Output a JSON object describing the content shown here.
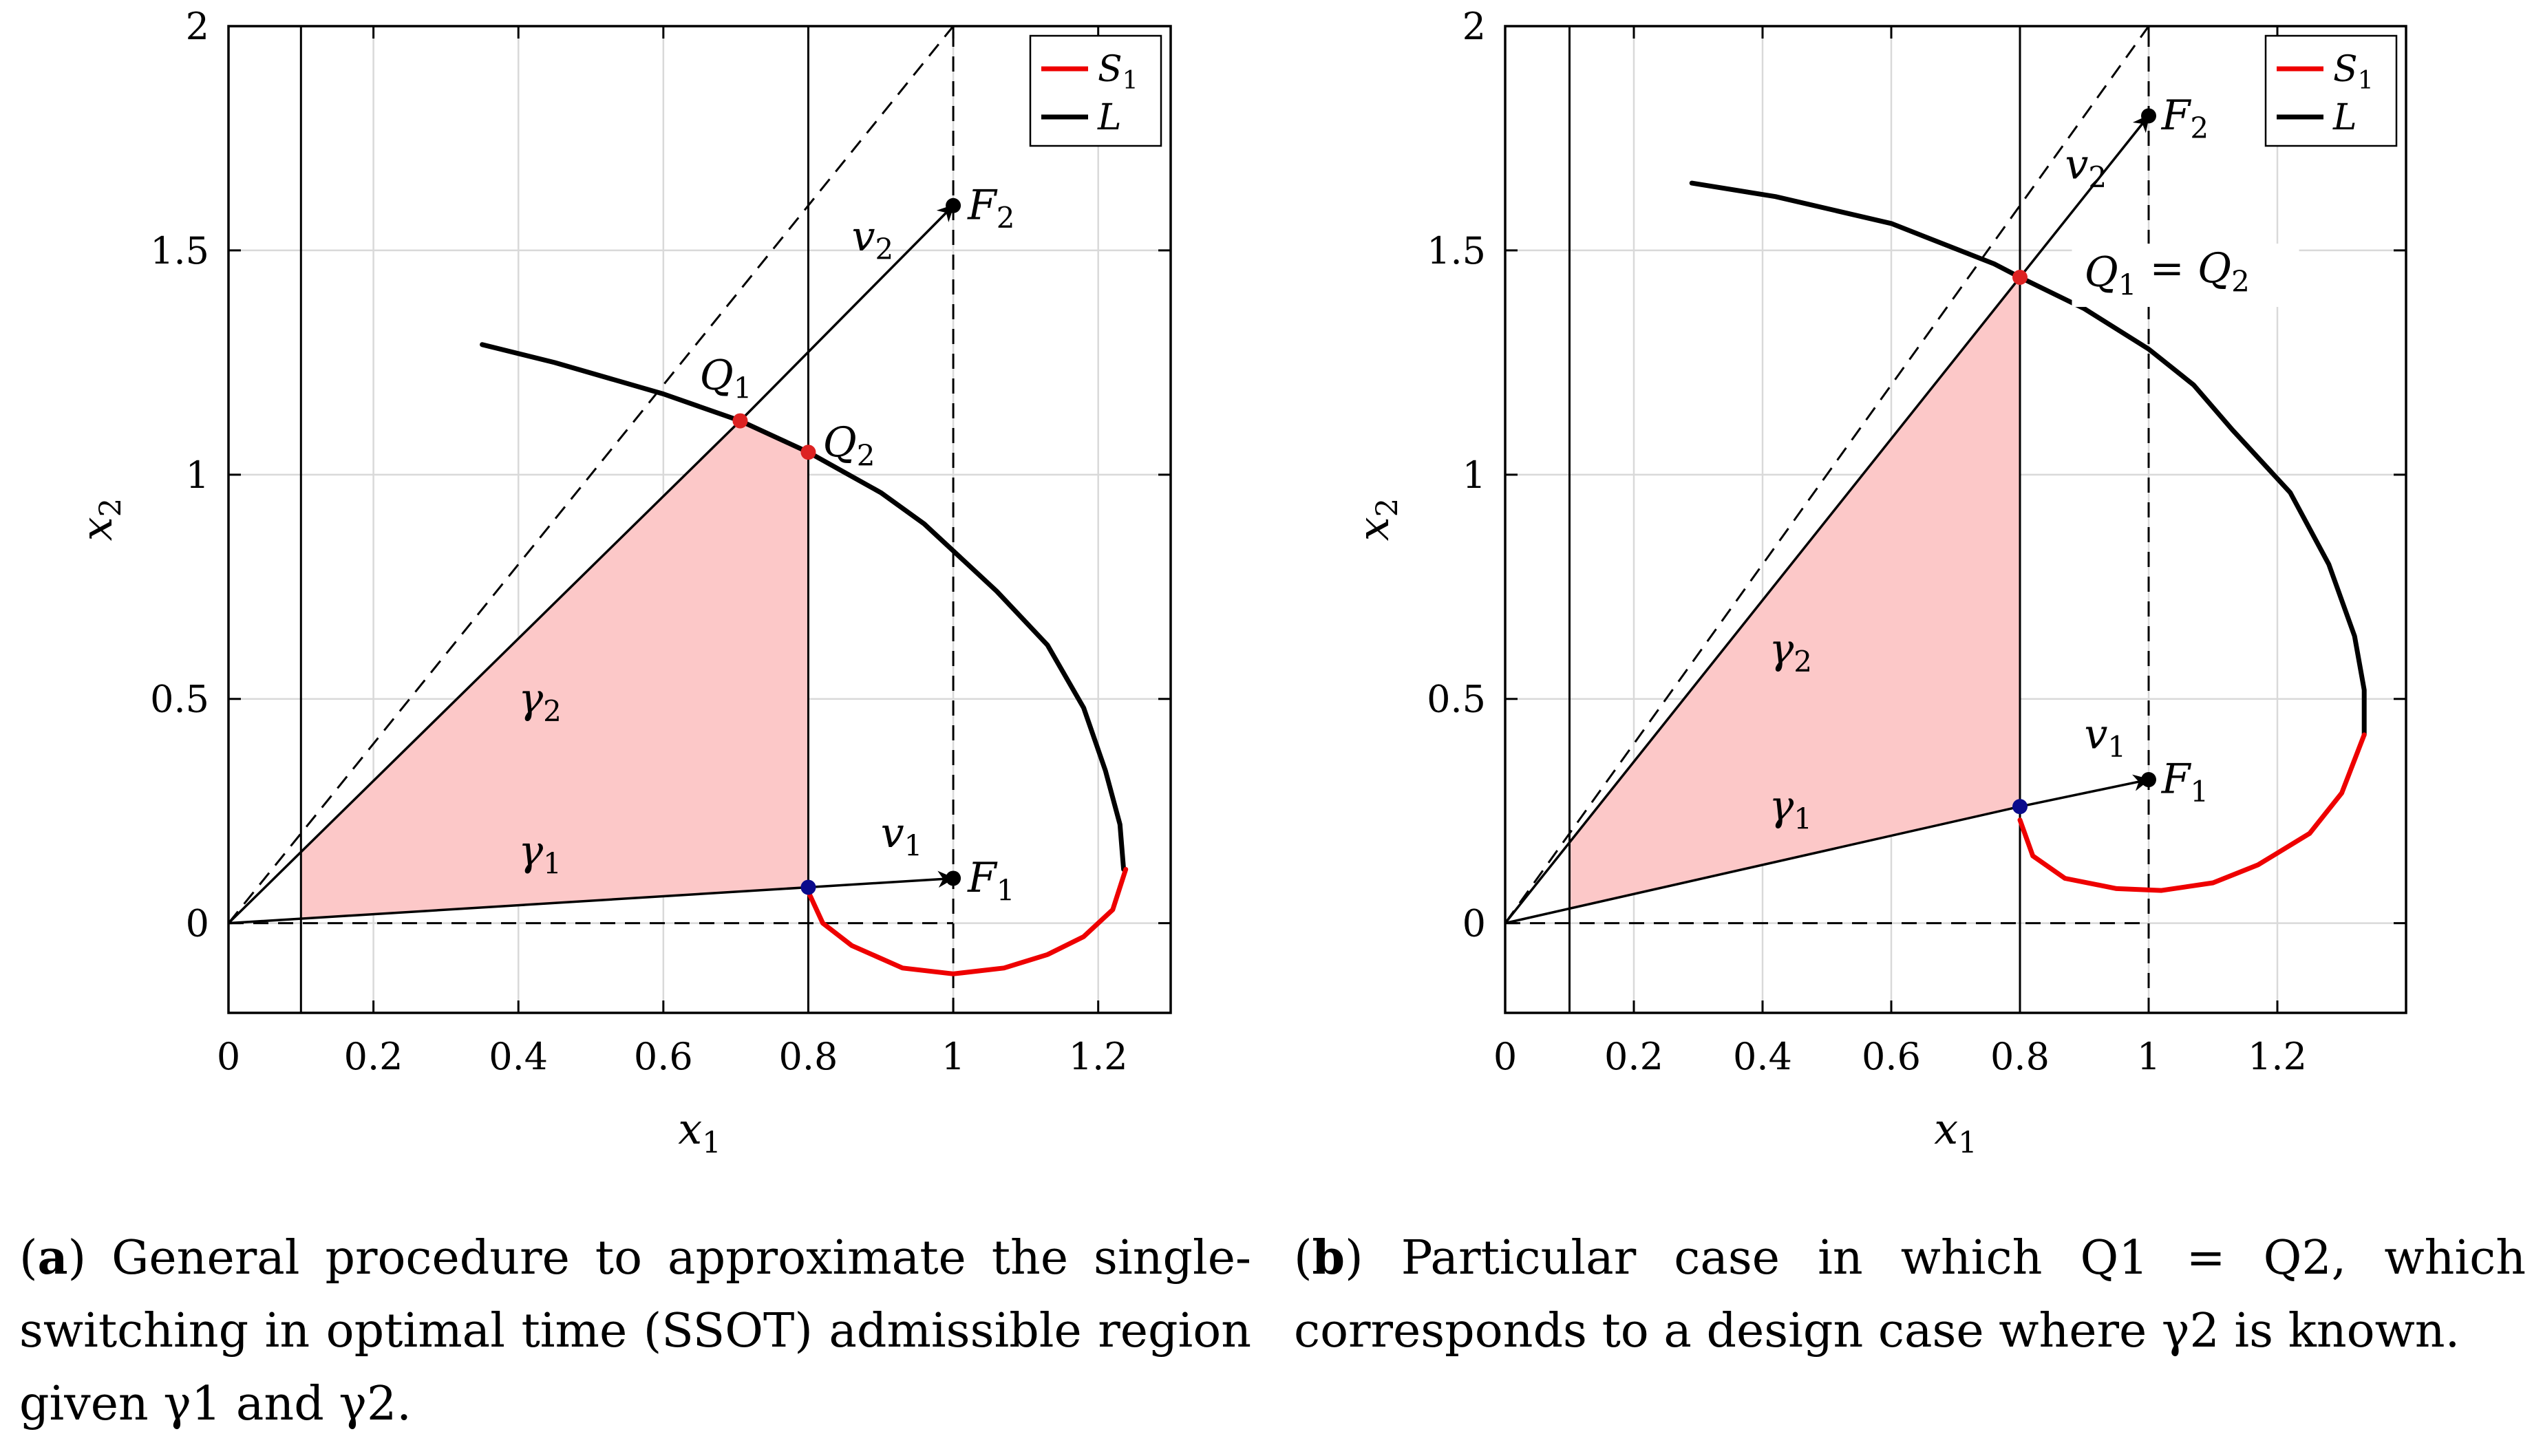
{
  "chart_data": [
    {
      "id": "a",
      "type": "line",
      "xlabel": "x1",
      "ylabel": "x2",
      "xlim": [
        0,
        1.3
      ],
      "ylim": [
        -0.2,
        2
      ],
      "x_ticks": [
        "0",
        "0.2",
        "0.4",
        "0.6",
        "0.8",
        "1",
        "1.2"
      ],
      "y_ticks": [
        "0",
        "0.5",
        "1",
        "1.5",
        "2"
      ],
      "grid": true,
      "legend": {
        "position": "top-right",
        "entries": [
          {
            "label": "S1",
            "color": "#ee0000"
          },
          {
            "label": "L",
            "color": "#000000"
          }
        ]
      },
      "series": [
        {
          "name": "L",
          "color": "#000000",
          "points": [
            [
              0.35,
              1.29
            ],
            [
              0.45,
              1.25
            ],
            [
              0.6,
              1.18
            ],
            [
              0.706,
              1.12
            ],
            [
              0.8,
              1.05
            ],
            [
              0.9,
              0.96
            ],
            [
              0.96,
              0.89
            ],
            [
              1.06,
              0.74
            ],
            [
              1.13,
              0.62
            ],
            [
              1.18,
              0.48
            ],
            [
              1.21,
              0.34
            ],
            [
              1.23,
              0.22
            ],
            [
              1.235,
              0.12
            ]
          ]
        },
        {
          "name": "S1",
          "color": "#ee0000",
          "points": [
            [
              0.8,
              0.07
            ],
            [
              0.82,
              0.0
            ],
            [
              0.86,
              -0.05
            ],
            [
              0.93,
              -0.1
            ],
            [
              1.0,
              -0.113
            ],
            [
              1.07,
              -0.1
            ],
            [
              1.13,
              -0.07
            ],
            [
              1.18,
              -0.03
            ],
            [
              1.22,
              0.03
            ],
            [
              1.238,
              0.12
            ]
          ]
        }
      ],
      "region": [
        [
          0.1,
          0.01
        ],
        [
          0.8,
          0.08
        ],
        [
          0.8,
          1.05
        ],
        [
          0.706,
          1.12
        ],
        [
          0.1,
          0.16
        ]
      ],
      "region_color": "#fcc8c8",
      "vertical_lines": [
        0.1,
        0.8
      ],
      "dashed": [
        [
          [
            0,
            0
          ],
          [
            1,
            0
          ]
        ],
        [
          [
            1,
            -0.2
          ],
          [
            1,
            2
          ]
        ],
        [
          [
            0,
            0
          ],
          [
            1,
            2
          ]
        ]
      ],
      "solid": [
        [
          [
            0,
            0
          ],
          [
            0.8,
            0.08
          ]
        ],
        [
          [
            0,
            0
          ],
          [
            0.706,
            1.12
          ]
        ]
      ],
      "arrows": [
        [
          [
            0.8,
            0.08
          ],
          [
            1,
            0.1
          ]
        ],
        [
          [
            0.706,
            1.12
          ],
          [
            1,
            1.6
          ]
        ]
      ],
      "points": [
        {
          "label": "Q1",
          "x": 0.706,
          "y": 1.12,
          "color": "#dd2222"
        },
        {
          "label": "Q2",
          "x": 0.8,
          "y": 1.05,
          "color": "#dd2222"
        },
        {
          "label": "F1",
          "x": 1.0,
          "y": 0.1,
          "color": "#000000"
        },
        {
          "label": "F2",
          "x": 1.0,
          "y": 1.6,
          "color": "#000000"
        },
        {
          "label": "",
          "x": 0.8,
          "y": 0.08,
          "color": "#0a0a8c"
        }
      ],
      "annotations": [
        {
          "text": "Q1",
          "x": 0.65,
          "y": 1.19
        },
        {
          "text": "Q2",
          "x": 0.82,
          "y": 1.04
        },
        {
          "text": "F1",
          "x": 1.02,
          "y": 0.07
        },
        {
          "text": "F2",
          "x": 1.02,
          "y": 1.57
        },
        {
          "text": "v1",
          "x": 0.9,
          "y": 0.17
        },
        {
          "text": "v2",
          "x": 0.86,
          "y": 1.5
        },
        {
          "text": "γ2",
          "x": 0.4,
          "y": 0.47
        },
        {
          "text": "γ1",
          "x": 0.4,
          "y": 0.13
        }
      ]
    },
    {
      "id": "b",
      "type": "line",
      "xlabel": "x1",
      "ylabel": "x2",
      "xlim": [
        0,
        1.4
      ],
      "ylim": [
        -0.2,
        2
      ],
      "x_ticks": [
        "0",
        "0.2",
        "0.4",
        "0.6",
        "0.8",
        "1",
        "1.2"
      ],
      "y_ticks": [
        "0",
        "0.5",
        "1",
        "1.5",
        "2"
      ],
      "grid": true,
      "legend": {
        "position": "top-right",
        "entries": [
          {
            "label": "S1",
            "color": "#ee0000"
          },
          {
            "label": "L",
            "color": "#000000"
          }
        ]
      },
      "series": [
        {
          "name": "L",
          "color": "#000000",
          "points": [
            [
              0.29,
              1.65
            ],
            [
              0.42,
              1.62
            ],
            [
              0.6,
              1.56
            ],
            [
              0.76,
              1.47
            ],
            [
              0.8,
              1.44
            ],
            [
              0.9,
              1.37
            ],
            [
              1.0,
              1.28
            ],
            [
              1.07,
              1.2
            ],
            [
              1.13,
              1.1
            ],
            [
              1.22,
              0.96
            ],
            [
              1.28,
              0.8
            ],
            [
              1.32,
              0.64
            ],
            [
              1.335,
              0.52
            ],
            [
              1.335,
              0.42
            ]
          ]
        },
        {
          "name": "S1",
          "color": "#ee0000",
          "points": [
            [
              0.8,
              0.23
            ],
            [
              0.82,
              0.15
            ],
            [
              0.87,
              0.1
            ],
            [
              0.95,
              0.077
            ],
            [
              1.02,
              0.073
            ],
            [
              1.1,
              0.09
            ],
            [
              1.17,
              0.13
            ],
            [
              1.25,
              0.2
            ],
            [
              1.3,
              0.29
            ],
            [
              1.335,
              0.42
            ]
          ]
        }
      ],
      "region": [
        [
          0.1,
          0.03
        ],
        [
          0.8,
          0.26
        ],
        [
          0.8,
          1.44
        ],
        [
          0.1,
          0.18
        ]
      ],
      "region_color": "#fcc8c8",
      "vertical_lines": [
        0.1,
        0.8
      ],
      "dashed": [
        [
          [
            0,
            0
          ],
          [
            1,
            0
          ]
        ],
        [
          [
            1,
            -0.2
          ],
          [
            1,
            2
          ]
        ],
        [
          [
            0,
            0
          ],
          [
            1,
            2
          ]
        ]
      ],
      "solid": [
        [
          [
            0,
            0
          ],
          [
            0.8,
            0.26
          ]
        ],
        [
          [
            0,
            0
          ],
          [
            0.8,
            1.44
          ]
        ]
      ],
      "arrows": [
        [
          [
            0.8,
            0.26
          ],
          [
            1,
            0.32
          ]
        ],
        [
          [
            0.8,
            1.44
          ],
          [
            1,
            1.8
          ]
        ]
      ],
      "points": [
        {
          "label": "Q1 = Q2",
          "x": 0.8,
          "y": 1.44,
          "color": "#dd2222"
        },
        {
          "label": "F1",
          "x": 1.0,
          "y": 0.32,
          "color": "#000000"
        },
        {
          "label": "F2",
          "x": 1.0,
          "y": 1.8,
          "color": "#000000"
        },
        {
          "label": "",
          "x": 0.8,
          "y": 0.26,
          "color": "#0a0a8c"
        }
      ],
      "annotations": [
        {
          "text": "Q1 = Q2",
          "x": 0.9,
          "y": 1.42,
          "boxed": true
        },
        {
          "text": "F1",
          "x": 1.02,
          "y": 0.29
        },
        {
          "text": "F2",
          "x": 1.02,
          "y": 1.77
        },
        {
          "text": "v1",
          "x": 0.9,
          "y": 0.39
        },
        {
          "text": "v2",
          "x": 0.87,
          "y": 1.66
        },
        {
          "text": "γ2",
          "x": 0.41,
          "y": 0.58
        },
        {
          "text": "γ1",
          "x": 0.41,
          "y": 0.23
        }
      ]
    }
  ],
  "captions": {
    "a": {
      "tag": "a",
      "text": "General procedure to approximate the single-switching in optimal time (SSOT) admissible region given γ1 and γ2."
    },
    "b": {
      "tag": "b",
      "text": "Particular case in which Q1 = Q2, which corresponds to a design case where γ2 is known."
    }
  }
}
